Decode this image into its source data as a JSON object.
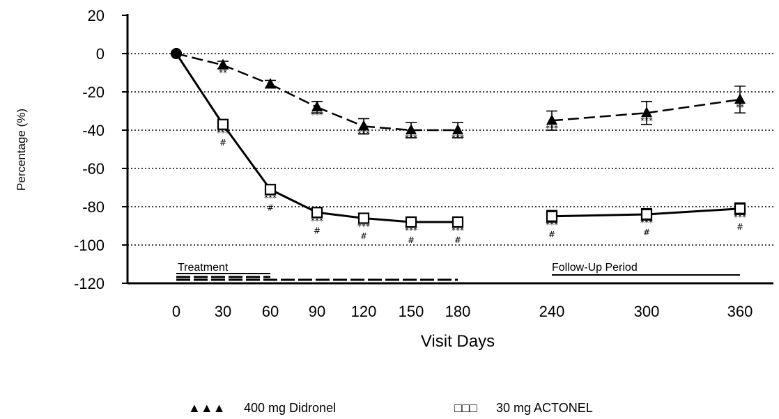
{
  "chart_data": {
    "type": "line",
    "xlabel": "Visit Days",
    "ylabel": "Percentage (%)",
    "ylim": [
      -120,
      20
    ],
    "yticks": [
      "20",
      "0",
      "-20",
      "-40",
      "-60",
      "-80",
      "-100",
      "-120"
    ],
    "xticks": [
      "0",
      "30",
      "60",
      "90",
      "120",
      "150",
      "180",
      "240",
      "300",
      "360"
    ],
    "x": [
      0,
      30,
      60,
      90,
      120,
      150,
      180,
      240,
      300,
      360
    ],
    "grid": "horizontal dotted",
    "series": [
      {
        "name": "400 mg Didronel",
        "marker": "triangle",
        "line": "dashed",
        "values": [
          0,
          -6,
          -16,
          -28,
          -38,
          -40,
          -40,
          -35,
          -31,
          -24
        ],
        "err": [
          0,
          2,
          2,
          3,
          4,
          4,
          4,
          5,
          6,
          7
        ],
        "sig": [
          "",
          "**",
          "",
          "***",
          "***",
          "***",
          "***",
          "***",
          "***",
          "**"
        ],
        "hash": [
          "",
          "",
          "",
          "",
          "",
          "",
          "",
          "",
          "",
          ""
        ]
      },
      {
        "name": "30 mg ACTONEL",
        "marker": "square",
        "line": "solid",
        "values": [
          0,
          -37,
          -71,
          -83,
          -86,
          -88,
          -88,
          -85,
          -84,
          -81
        ],
        "err": [
          0,
          2,
          2,
          2,
          2,
          2,
          2,
          3,
          3,
          3
        ],
        "sig": [
          "",
          "***",
          "***",
          "***",
          "***",
          "***",
          "***",
          "***",
          "***",
          "***"
        ],
        "hash": [
          "",
          "#",
          "#",
          "#",
          "#",
          "#",
          "#",
          "#",
          "#",
          "#"
        ]
      }
    ],
    "periods": [
      {
        "label": "Treatment",
        "from": 0,
        "to": 180
      },
      {
        "label": "Follow-Up Period",
        "from": 240,
        "to": 360
      }
    ],
    "legend": [
      {
        "symbol": "▲▲▲",
        "label": "400 mg Didronel"
      },
      {
        "symbol": "□□□",
        "label": "30 mg ACTONEL"
      }
    ],
    "legend_position": "bottom"
  }
}
